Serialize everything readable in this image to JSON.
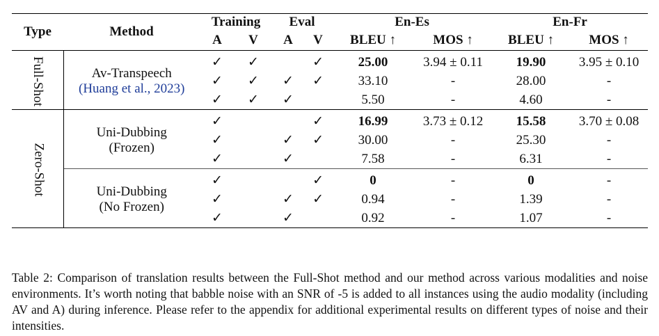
{
  "header": {
    "type": "Type",
    "method": "Method",
    "training": "Training",
    "eval": "Eval",
    "en_es": "En-Es",
    "en_fr": "En-Fr",
    "a": "A",
    "v": "V",
    "bleu": "BLEU ↑",
    "mos": "MOS ↑"
  },
  "groups": {
    "full_shot": "Full-Shot",
    "zero_shot": "Zero-Shot"
  },
  "methods": {
    "avt_name": "Av-Transpeech",
    "avt_cite": "(Huang et al., 2023)",
    "ud_name": "Uni-Dubbing",
    "ud_frozen": "(Frozen)",
    "udn_name": "Uni-Dubbing",
    "udn_frozen": "(No Frozen)"
  },
  "rows": [
    {
      "ta": "✓",
      "tv": "✓",
      "ea": "",
      "ev": "✓",
      "es_bleu": "25.00",
      "es_mos": "3.94 ± 0.11",
      "fr_bleu": "19.90",
      "fr_mos": "3.95 ± 0.10"
    },
    {
      "ta": "✓",
      "tv": "✓",
      "ea": "✓",
      "ev": "✓",
      "es_bleu": "33.10",
      "es_mos": "-",
      "fr_bleu": "28.00",
      "fr_mos": "-"
    },
    {
      "ta": "✓",
      "tv": "✓",
      "ea": "✓",
      "ev": "",
      "es_bleu": "5.50",
      "es_mos": "-",
      "fr_bleu": "4.60",
      "fr_mos": "-"
    },
    {
      "ta": "✓",
      "tv": "",
      "ea": "",
      "ev": "✓",
      "es_bleu": "16.99",
      "es_mos": "3.73 ± 0.12",
      "fr_bleu": "15.58",
      "fr_mos": "3.70 ± 0.08"
    },
    {
      "ta": "✓",
      "tv": "",
      "ea": "✓",
      "ev": "✓",
      "es_bleu": "30.00",
      "es_mos": "-",
      "fr_bleu": "25.30",
      "fr_mos": "-"
    },
    {
      "ta": "✓",
      "tv": "",
      "ea": "✓",
      "ev": "",
      "es_bleu": "7.58",
      "es_mos": "-",
      "fr_bleu": "6.31",
      "fr_mos": "-"
    },
    {
      "ta": "✓",
      "tv": "",
      "ea": "",
      "ev": "✓",
      "es_bleu": "0",
      "es_mos": "-",
      "fr_bleu": "0",
      "fr_mos": "-"
    },
    {
      "ta": "✓",
      "tv": "",
      "ea": "✓",
      "ev": "✓",
      "es_bleu": "0.94",
      "es_mos": "-",
      "fr_bleu": "1.39",
      "fr_mos": "-"
    },
    {
      "ta": "✓",
      "tv": "",
      "ea": "✓",
      "ev": "",
      "es_bleu": "0.92",
      "es_mos": "-",
      "fr_bleu": "1.07",
      "fr_mos": "-"
    }
  ],
  "caption": "Table 2: Comparison of translation results between the Full-Shot method and our method across various modalities and noise environments. It’s worth noting that babble noise with an SNR of -5 is added to all instances using the audio modality (including AV and A) during inference. Please refer to the appendix for additional experimental results on different types of noise and their intensities."
}
